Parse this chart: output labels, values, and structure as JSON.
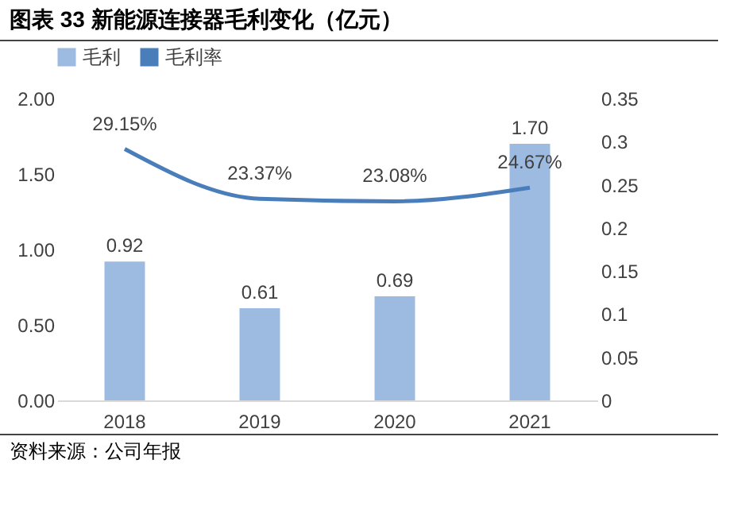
{
  "chart_data": {
    "type": "bar",
    "title": "图表 33 新能源连接器毛利变化（亿元）",
    "categories": [
      "2018",
      "2019",
      "2020",
      "2021"
    ],
    "series": [
      {
        "name": "毛利",
        "color": "#9dbbe0",
        "values": [
          0.92,
          0.61,
          0.69,
          1.7
        ],
        "value_labels": [
          "0.92",
          "0.61",
          "0.69",
          "1.70"
        ]
      },
      {
        "name": "毛利率",
        "type": "line",
        "axis": "y2",
        "color": "#4a7ebb",
        "values": [
          0.2915,
          0.2337,
          0.2308,
          0.2467
        ],
        "value_labels": [
          "29.15%",
          "23.37%",
          "23.08%",
          "24.67%"
        ]
      }
    ],
    "ylim": [
      0,
      2
    ],
    "yticks": [
      {
        "value": 0,
        "label": "0.00"
      },
      {
        "value": 0.5,
        "label": "0.50"
      },
      {
        "value": 1,
        "label": "1.00"
      },
      {
        "value": 1.5,
        "label": "1.50"
      },
      {
        "value": 2,
        "label": "2.00"
      }
    ],
    "y2lim": [
      0,
      0.35
    ],
    "y2ticks": [
      0,
      0.05,
      0.1,
      0.15,
      0.2,
      0.25,
      0.3,
      0.35
    ],
    "legend": "top",
    "grid": false,
    "marker": "none",
    "line_style": "solid",
    "annotations": [
      "资料来源：公司年报"
    ]
  }
}
